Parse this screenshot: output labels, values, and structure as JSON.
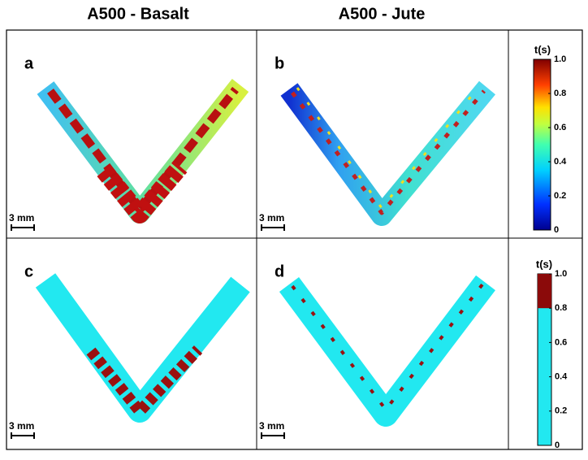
{
  "header": {
    "columns": [
      "A500 - Basalt",
      "A500 - Jute"
    ]
  },
  "panels": [
    {
      "label": "a",
      "scale_bar": "3 mm"
    },
    {
      "label": "b",
      "scale_bar": "3 mm"
    },
    {
      "label": "c",
      "scale_bar": "3 mm"
    },
    {
      "label": "d",
      "scale_bar": "3 mm"
    }
  ],
  "colorbars": [
    {
      "title": "t(s)",
      "ticks": [
        "1.0",
        "0.8",
        "0.6",
        "0.4",
        "0.2",
        "0"
      ]
    },
    {
      "title": "t(s)",
      "ticks": [
        "1.0",
        "0.8",
        "0.6",
        "0.4",
        "0.2",
        "0"
      ]
    }
  ]
}
